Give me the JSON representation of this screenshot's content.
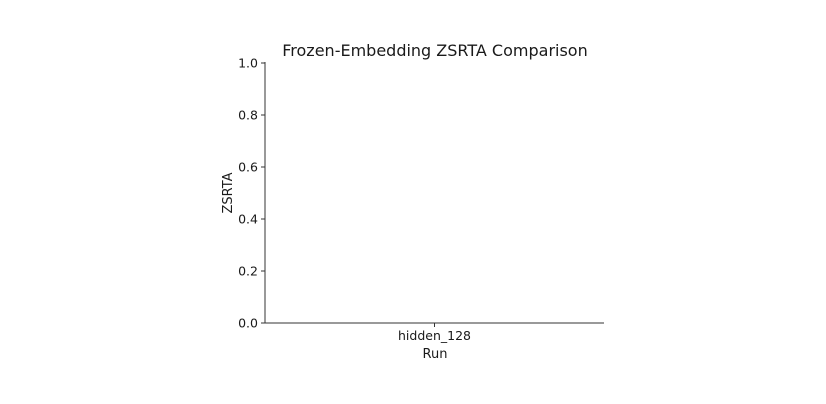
{
  "chart_data": {
    "type": "bar",
    "title": "Frozen-Embedding ZSRTA Comparison",
    "xlabel": "Run",
    "ylabel": "ZSRTA",
    "categories": [
      "hidden_128"
    ],
    "values": [
      0.0
    ],
    "ylim": [
      0,
      1.0
    ],
    "yticks": [
      "0.0",
      "0.2",
      "0.4",
      "0.6",
      "0.8",
      "1.0"
    ],
    "grid": false,
    "bar_color": "#4c72b0"
  }
}
